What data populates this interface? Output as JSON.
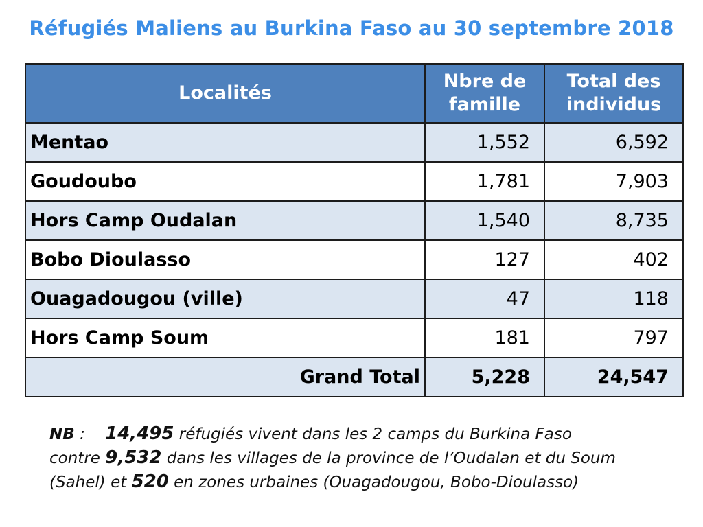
{
  "title": "Réfugiés Maliens au Burkina Faso au 30 septembre 2018",
  "table": {
    "headers": {
      "locality": "Localités",
      "families_line1": "Nbre de",
      "families_line2": "famille",
      "individuals_line1": "Total des",
      "individuals_line2": "individus"
    },
    "rows": [
      {
        "locality": "Mentao",
        "families": "1,552",
        "individuals": "6,592"
      },
      {
        "locality": "Goudoubo",
        "families": "1,781",
        "individuals": "7,903"
      },
      {
        "locality": "Hors Camp Oudalan",
        "families": "1,540",
        "individuals": "8,735"
      },
      {
        "locality": "Bobo Dioulasso",
        "families": "127",
        "individuals": "402"
      },
      {
        "locality": "Ouagadougou (ville)",
        "families": "47",
        "individuals": "118"
      },
      {
        "locality": "Hors Camp Soum",
        "families": "181",
        "individuals": "797"
      }
    ],
    "total": {
      "label": "Grand Total",
      "families": "5,228",
      "individuals": "24,547"
    }
  },
  "note": {
    "label": "NB",
    "sep": " :",
    "value1": "14,495",
    "text1": " réfugiés vivent dans les 2 camps du Burkina Faso contre ",
    "value2": "9,532",
    "text2": " dans les villages de la province de l’Oudalan et du Soum (Sahel) et ",
    "value3": "520",
    "text3": " en zones urbaines (Ouagadougou, Bobo-Dioulasso)"
  }
}
